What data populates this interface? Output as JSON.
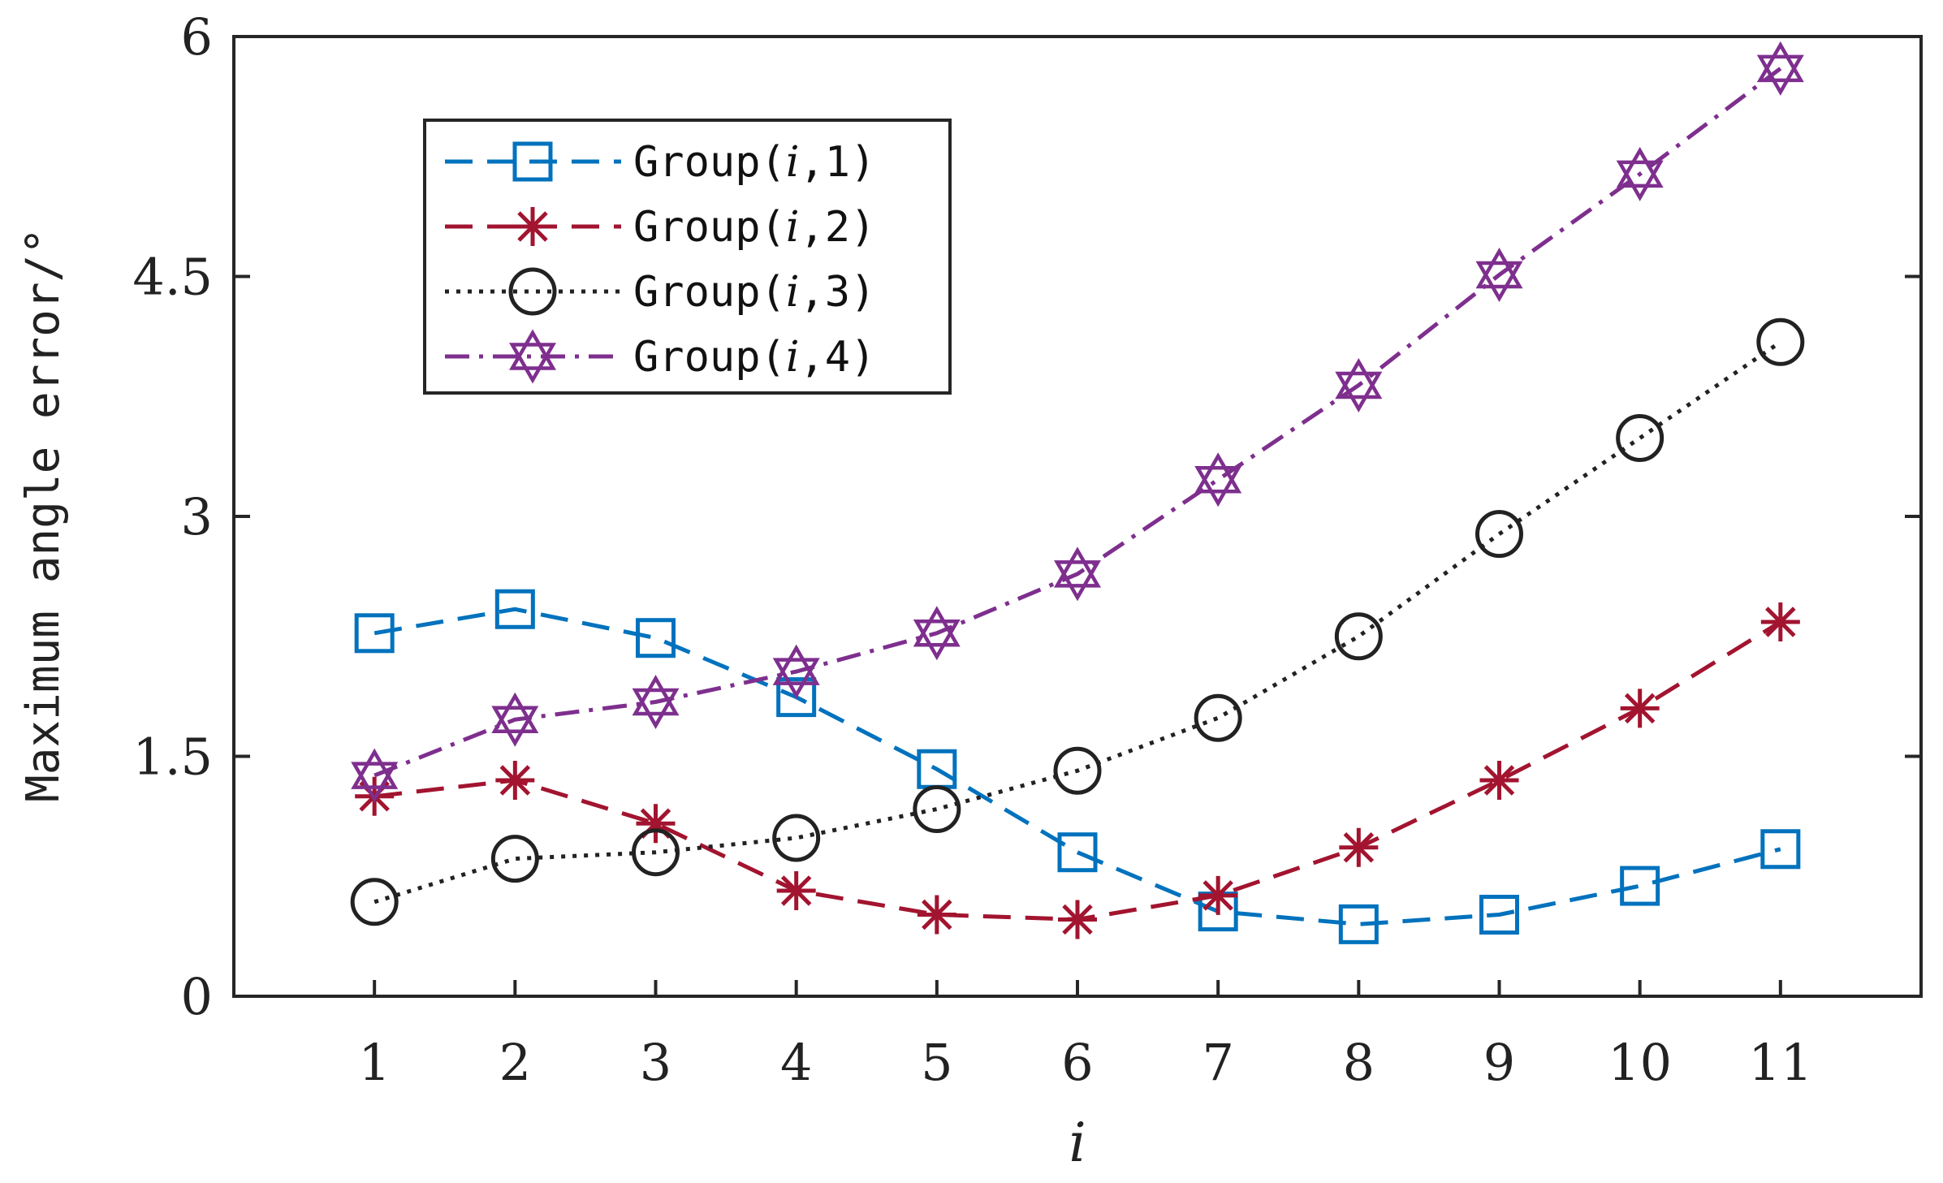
{
  "chart_data": {
    "type": "line",
    "title": "",
    "xlabel": "i",
    "ylabel": "Maximum angle error/°",
    "x": [
      1,
      2,
      3,
      4,
      5,
      6,
      7,
      8,
      9,
      10,
      11
    ],
    "xlim": [
      0,
      12
    ],
    "ylim": [
      0,
      6
    ],
    "xticks": [
      "1",
      "2",
      "3",
      "4",
      "5",
      "6",
      "7",
      "8",
      "9",
      "10",
      "11"
    ],
    "yticks": [
      {
        "value": 0,
        "label": "0"
      },
      {
        "value": 1.5,
        "label": "1.5"
      },
      {
        "value": 3,
        "label": "3"
      },
      {
        "value": 4.5,
        "label": "4.5"
      },
      {
        "value": 6,
        "label": "6"
      }
    ],
    "grid": false,
    "legend_position": "top-left",
    "series": [
      {
        "name": "Group(i,1)",
        "legend_prefix": "Group(",
        "legend_italic": "i",
        "legend_suffix": ",1)",
        "color": "#0072BD",
        "dash": "dashed",
        "marker": "square",
        "values": [
          2.27,
          2.42,
          2.24,
          1.87,
          1.42,
          0.9,
          0.53,
          0.45,
          0.51,
          0.69,
          0.92
        ]
      },
      {
        "name": "Group(i,2)",
        "legend_prefix": "Group(",
        "legend_italic": "i",
        "legend_suffix": ",2)",
        "color": "#A2142F",
        "dash": "dashed",
        "marker": "asterisk",
        "values": [
          1.25,
          1.35,
          1.08,
          0.66,
          0.51,
          0.48,
          0.63,
          0.93,
          1.35,
          1.8,
          2.34
        ]
      },
      {
        "name": "Group(i,3)",
        "legend_prefix": "Group(",
        "legend_italic": "i",
        "legend_suffix": ",3)",
        "color": "#222222",
        "dash": "dotted",
        "marker": "circle",
        "values": [
          0.59,
          0.86,
          0.9,
          0.99,
          1.17,
          1.41,
          1.74,
          2.25,
          2.89,
          3.49,
          4.09
        ]
      },
      {
        "name": "Group(i,4)",
        "legend_prefix": "Group(",
        "legend_italic": "i",
        "legend_suffix": ",4)",
        "color": "#7E2F8E",
        "dash": "dashdot",
        "marker": "hexagram",
        "values": [
          1.38,
          1.73,
          1.84,
          2.03,
          2.27,
          2.64,
          3.23,
          3.82,
          4.51,
          5.14,
          5.8
        ]
      }
    ]
  }
}
